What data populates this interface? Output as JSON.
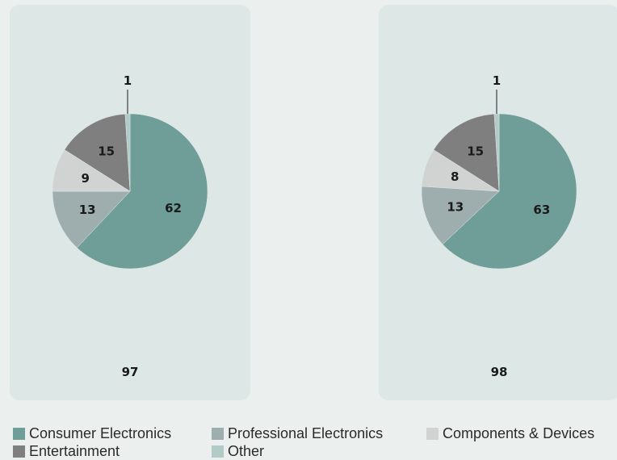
{
  "colors": {
    "consumer": "#6f9e99",
    "professional": "#9eaeae",
    "components": "#d1d3d3",
    "entertainment": "#7f7f7f",
    "other": "#b2cbc7"
  },
  "chart_data": [
    {
      "type": "pie",
      "categories": [
        "Consumer Electronics",
        "Professional Electronics",
        "Components & Devices",
        "Entertainment",
        "Other"
      ],
      "values": [
        62,
        13,
        9,
        15,
        1
      ],
      "total_label": "97"
    },
    {
      "type": "pie",
      "categories": [
        "Consumer Electronics",
        "Professional Electronics",
        "Components & Devices",
        "Entertainment",
        "Other"
      ],
      "values": [
        63,
        13,
        8,
        15,
        1
      ],
      "total_label": "98"
    }
  ],
  "legend": [
    {
      "label": "Consumer Electronics",
      "color": "#6f9e99"
    },
    {
      "label": "Professional Electronics",
      "color": "#9eaeae"
    },
    {
      "label": "Components & Devices",
      "color": "#d1d3d3"
    },
    {
      "label": "Entertainment",
      "color": "#7f7f7f"
    },
    {
      "label": "Other",
      "color": "#b2cbc7"
    }
  ]
}
